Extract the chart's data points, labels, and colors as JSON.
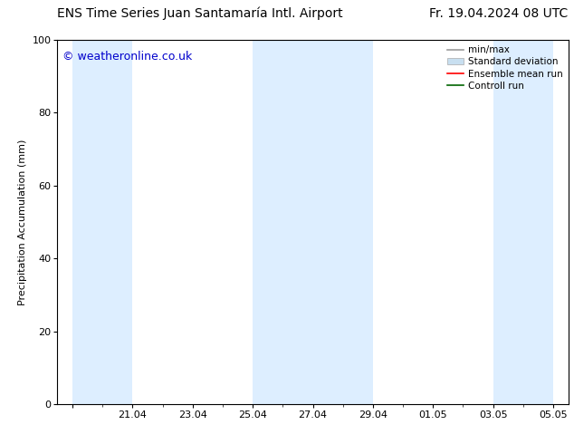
{
  "title": "ENS Time Series Juan Santamaría Intl. Airport",
  "title_right": "Fr. 19.04.2024 08 UTC",
  "ylabel": "Precipitation Accumulation (mm)",
  "watermark": "© weatheronline.co.uk",
  "watermark_color": "#0000cc",
  "ylim": [
    0,
    100
  ],
  "yticks": [
    0,
    20,
    40,
    60,
    80,
    100
  ],
  "bg_color": "#ffffff",
  "plot_bg_color": "#ffffff",
  "shaded_bands": [
    {
      "x_start": 0,
      "x_end": 2,
      "color": "#ddeeff"
    },
    {
      "x_start": 2,
      "x_end": 4,
      "color": "#ffffff"
    },
    {
      "x_start": 4,
      "x_end": 6,
      "color": "#ffffff"
    },
    {
      "x_start": 6,
      "x_end": 8,
      "color": "#ddeeff"
    },
    {
      "x_start": 8,
      "x_end": 10,
      "color": "#ddeeff"
    },
    {
      "x_start": 10,
      "x_end": 12,
      "color": "#ffffff"
    },
    {
      "x_start": 12,
      "x_end": 14,
      "color": "#ffffff"
    },
    {
      "x_start": 14,
      "x_end": 16,
      "color": "#ddeeff"
    }
  ],
  "x_tick_positions": [
    0,
    2,
    4,
    6,
    8,
    10,
    12,
    14,
    16
  ],
  "x_tick_labels": [
    "",
    "21.04",
    "23.04",
    "25.04",
    "27.04",
    "29.04",
    "01.05",
    "03.05",
    "05.05"
  ],
  "xmin": -0.5,
  "xmax": 16.5,
  "legend_labels": [
    "min/max",
    "Standard deviation",
    "Ensemble mean run",
    "Controll run"
  ],
  "legend_line_color_0": "#999999",
  "legend_fill_color_1": "#c8dff0",
  "legend_line_color_2": "#ff0000",
  "legend_line_color_3": "#006400",
  "font_size_title": 10,
  "font_size_ticks": 8,
  "font_size_legend": 7.5,
  "font_size_ylabel": 8,
  "font_size_watermark": 9
}
